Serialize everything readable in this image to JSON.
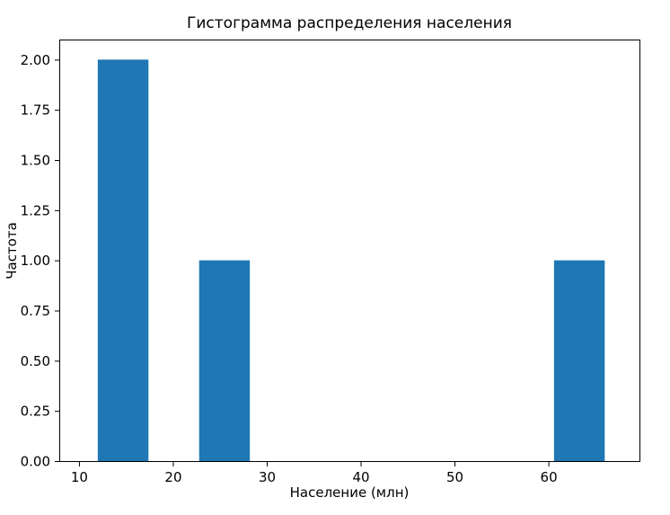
{
  "chart_data": {
    "type": "bar",
    "subtype": "histogram",
    "title": "Гистограмма распределения населения",
    "xlabel": "Население (млн)",
    "ylabel": "Частота",
    "bar_color": "#1f77b4",
    "grid": false,
    "legend": null,
    "bin_width": 5.4,
    "bars": [
      {
        "x_start": 12.0,
        "x_end": 17.4,
        "frequency": 2
      },
      {
        "x_start": 22.8,
        "x_end": 28.2,
        "frequency": 1
      },
      {
        "x_start": 60.6,
        "x_end": 66.0,
        "frequency": 1
      }
    ],
    "xlim": [
      7.9,
      69.7
    ],
    "ylim": [
      0,
      2.1
    ],
    "xticks": [
      {
        "value": 10,
        "label": "10"
      },
      {
        "value": 20,
        "label": "20"
      },
      {
        "value": 30,
        "label": "30"
      },
      {
        "value": 40,
        "label": "40"
      },
      {
        "value": 50,
        "label": "50"
      },
      {
        "value": 60,
        "label": "60"
      }
    ],
    "yticks": [
      {
        "value": 0.0,
        "label": "0.00"
      },
      {
        "value": 0.25,
        "label": "0.25"
      },
      {
        "value": 0.5,
        "label": "0.50"
      },
      {
        "value": 0.75,
        "label": "0.75"
      },
      {
        "value": 1.0,
        "label": "1.00"
      },
      {
        "value": 1.25,
        "label": "1.25"
      },
      {
        "value": 1.5,
        "label": "1.50"
      },
      {
        "value": 1.75,
        "label": "1.75"
      },
      {
        "value": 2.0,
        "label": "2.00"
      }
    ]
  }
}
